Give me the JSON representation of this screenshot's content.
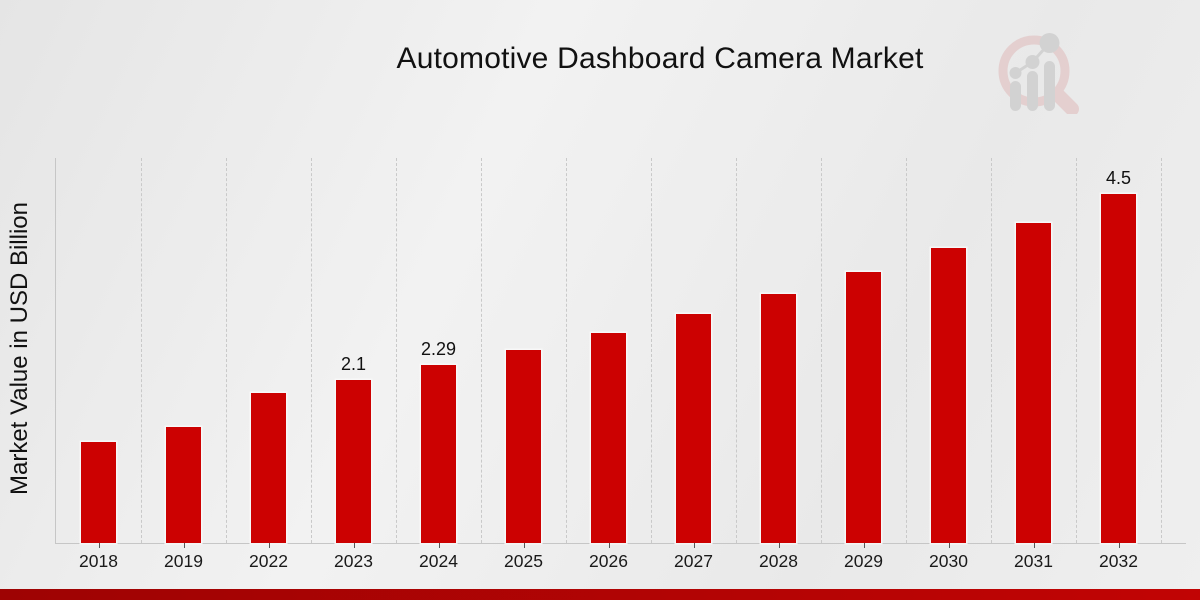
{
  "page": {
    "background": "#ececec",
    "footer_band": {
      "color_left": "#9e0303",
      "color_right": "#c10404"
    }
  },
  "chart_data": {
    "type": "bar",
    "title": "Automotive Dashboard Camera Market",
    "ylabel": "Market Value in USD Billion",
    "xlabel": "",
    "categories": [
      "2018",
      "2019",
      "2022",
      "2023",
      "2024",
      "2025",
      "2026",
      "2027",
      "2028",
      "2029",
      "2030",
      "2031",
      "2032"
    ],
    "values": [
      1.3,
      1.49,
      1.93,
      2.1,
      2.29,
      2.49,
      2.71,
      2.95,
      3.21,
      3.49,
      3.8,
      4.13,
      4.5
    ],
    "bar_labels": [
      null,
      null,
      null,
      "2.1",
      "2.29",
      null,
      null,
      null,
      null,
      null,
      null,
      null,
      "4.5"
    ],
    "bar_color": "#cc0101",
    "ylim": [
      0,
      4.96
    ],
    "grid": "vertical-dashed",
    "legend": "none"
  },
  "logo": {
    "name": "magnifier-bar-chart-logo",
    "ring_color": "#dfb6b6",
    "bars_color": "#bdbdbd"
  }
}
